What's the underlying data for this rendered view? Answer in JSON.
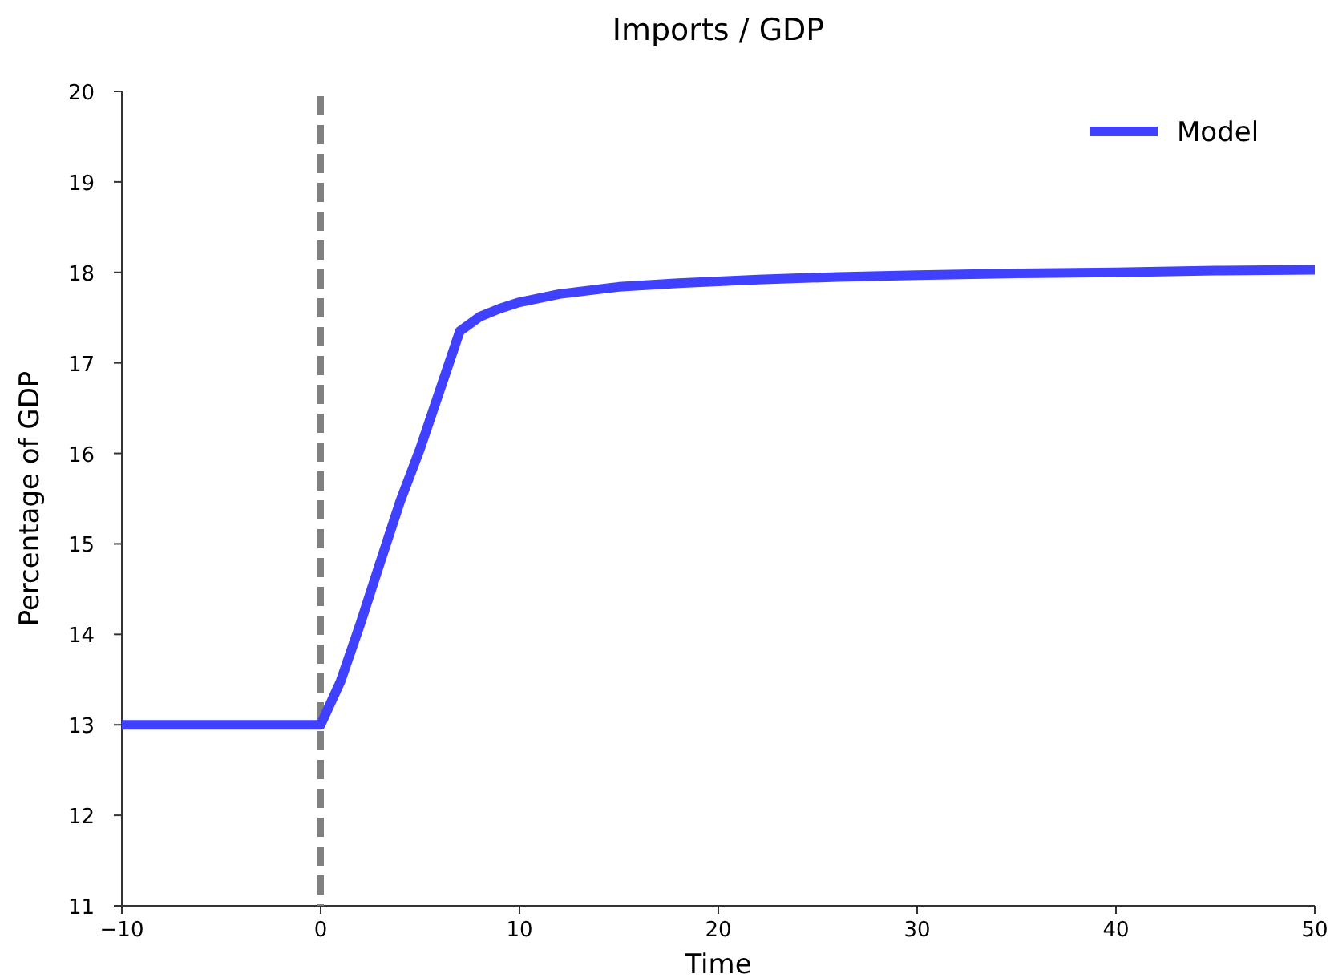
{
  "chart_data": {
    "type": "line",
    "title": "Imports / GDP",
    "xlabel": "Time",
    "ylabel": "Percentage of GDP",
    "xlim": [
      -10,
      50
    ],
    "xticks": [
      {
        "value": -10,
        "label": "−10"
      },
      0,
      10,
      20,
      30,
      40,
      50
    ],
    "ylim": [
      11,
      20
    ],
    "yticks": [
      11,
      12,
      13,
      14,
      15,
      16,
      17,
      18,
      19,
      20
    ],
    "grid": false,
    "legend": "top right",
    "line_style": "solid",
    "marker": "none",
    "ref_lines": [
      {
        "axis": "x",
        "value": 0,
        "color": "#808080",
        "line_style": "dashed"
      }
    ],
    "series": [
      {
        "name": "Model",
        "color": "#4040ff",
        "x": [
          -10,
          0,
          1,
          2,
          3,
          4,
          5,
          6,
          7,
          8,
          9,
          10,
          12,
          15,
          18,
          22,
          26,
          30,
          35,
          40,
          45,
          50
        ],
        "values": [
          13,
          13,
          13.48,
          14.12,
          14.8,
          15.47,
          16.05,
          16.7,
          17.35,
          17.51,
          17.6,
          17.67,
          17.76,
          17.84,
          17.88,
          17.92,
          17.95,
          17.97,
          17.99,
          18.0,
          18.02,
          18.03
        ]
      }
    ]
  }
}
